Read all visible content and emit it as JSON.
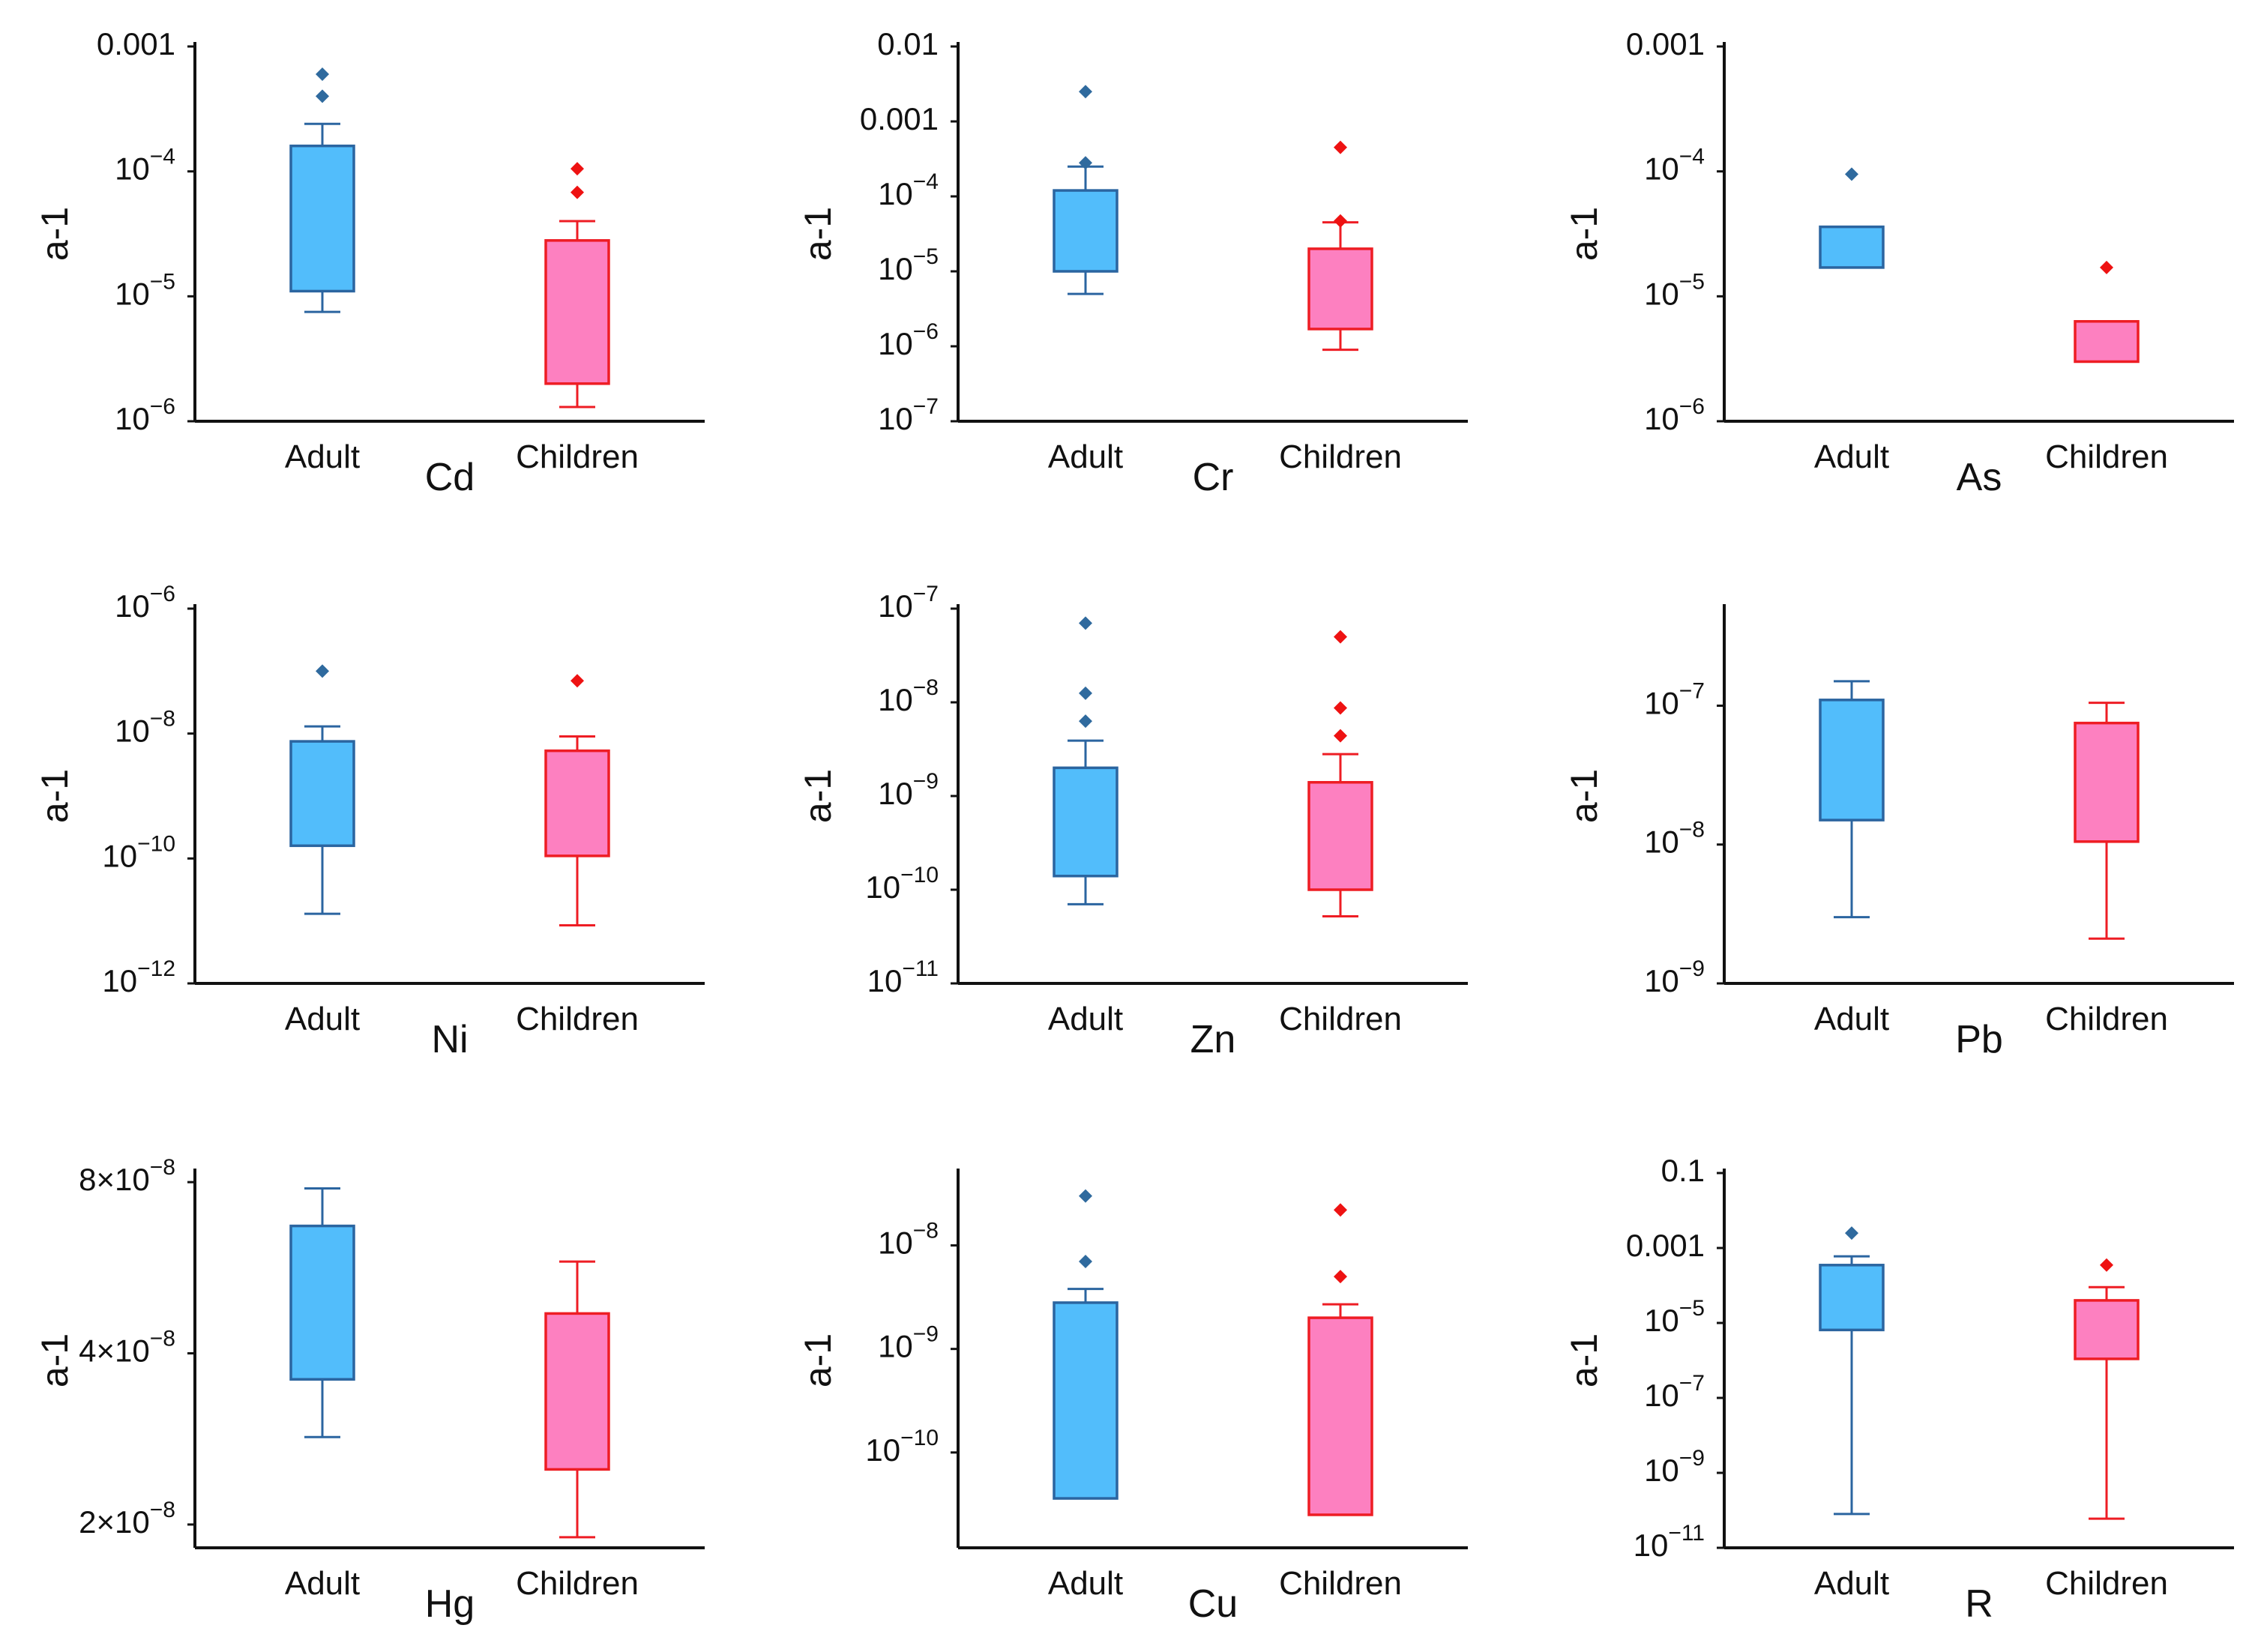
{
  "colors": {
    "adult_fill": "#52BDFB",
    "adult_stroke": "#2B65A0",
    "adult_outlier": "#2F6A9E",
    "children_fill": "#FD80C0",
    "children_stroke": "#EE1D24",
    "children_outlier": "#EE1212",
    "axis": "#111111"
  },
  "chart_data": [
    {
      "type": "box",
      "title": "Cd",
      "xlabel": "Cd",
      "ylabel": "a-1",
      "yscale": "log",
      "ylim": [
        1e-06,
        0.001
      ],
      "yticks": [
        {
          "value": 0.001,
          "label": "0.001"
        },
        {
          "value": 0.0001,
          "label": "10",
          "exp": "−4"
        },
        {
          "value": 1e-05,
          "label": "10",
          "exp": "−5"
        },
        {
          "value": 1e-06,
          "label": "10",
          "exp": "−6"
        }
      ],
      "categories": [
        "Adult",
        "Children"
      ],
      "series": [
        {
          "name": "Adult",
          "whisker_low": 7.5e-06,
          "q1": 1.1e-05,
          "q3": 0.00016,
          "whisker_high": 0.00024,
          "outliers": [
            0.0004,
            0.0006
          ]
        },
        {
          "name": "Children",
          "whisker_low": 1.3e-06,
          "q1": 2e-06,
          "q3": 2.8e-05,
          "whisker_high": 4e-05,
          "outliers": [
            6.8e-05,
            0.000105
          ]
        }
      ]
    },
    {
      "type": "box",
      "title": "Cr",
      "xlabel": "Cr",
      "ylabel": "a-1",
      "yscale": "log",
      "ylim": [
        1e-07,
        0.01
      ],
      "yticks": [
        {
          "value": 0.01,
          "label": "0.01"
        },
        {
          "value": 0.001,
          "label": "0.001"
        },
        {
          "value": 0.0001,
          "label": "10",
          "exp": "−4"
        },
        {
          "value": 1e-05,
          "label": "10",
          "exp": "−5"
        },
        {
          "value": 1e-06,
          "label": "10",
          "exp": "−6"
        },
        {
          "value": 1e-07,
          "label": "10",
          "exp": "−7"
        }
      ],
      "categories": [
        "Adult",
        "Children"
      ],
      "series": [
        {
          "name": "Adult",
          "whisker_low": 5e-06,
          "q1": 1e-05,
          "q3": 0.00012,
          "whisker_high": 0.00025,
          "outliers": [
            0.00028,
            0.0025
          ]
        },
        {
          "name": "Children",
          "whisker_low": 9e-07,
          "q1": 1.7e-06,
          "q3": 2e-05,
          "whisker_high": 4.5e-05,
          "outliers": [
            4.7e-05,
            0.00045
          ]
        }
      ]
    },
    {
      "type": "box",
      "title": "As",
      "xlabel": "As",
      "ylabel": "a-1",
      "yscale": "log",
      "ylim": [
        1e-06,
        0.001
      ],
      "yticks": [
        {
          "value": 0.001,
          "label": "0.001"
        },
        {
          "value": 0.0001,
          "label": "10",
          "exp": "−4"
        },
        {
          "value": 1e-05,
          "label": "10",
          "exp": "−5"
        },
        {
          "value": 1e-06,
          "label": "10",
          "exp": "−6"
        }
      ],
      "categories": [
        "Adult",
        "Children"
      ],
      "series": [
        {
          "name": "Adult",
          "whisker_low": 1.7e-05,
          "q1": 1.7e-05,
          "q3": 3.6e-05,
          "whisker_high": 3.6e-05,
          "outliers": [
            9.5e-05
          ]
        },
        {
          "name": "Children",
          "whisker_low": 3e-06,
          "q1": 3e-06,
          "q3": 6.3e-06,
          "whisker_high": 6.3e-06,
          "outliers": [
            1.7e-05
          ]
        }
      ]
    },
    {
      "type": "box",
      "title": "Ni",
      "xlabel": "Ni",
      "ylabel": "a-1",
      "yscale": "log",
      "ylim": [
        1e-12,
        1e-06
      ],
      "yticks": [
        {
          "value": 1e-06,
          "label": "10",
          "exp": "−6"
        },
        {
          "value": 1e-08,
          "label": "10",
          "exp": "−8"
        },
        {
          "value": 1e-10,
          "label": "10",
          "exp": "−10"
        },
        {
          "value": 1e-12,
          "label": "10",
          "exp": "−12"
        }
      ],
      "categories": [
        "Adult",
        "Children"
      ],
      "series": [
        {
          "name": "Adult",
          "whisker_low": 1.3e-11,
          "q1": 1.6e-10,
          "q3": 7.5e-09,
          "whisker_high": 1.3e-08,
          "outliers": [
            1e-07
          ]
        },
        {
          "name": "Children",
          "whisker_low": 8.5e-12,
          "q1": 1.1e-10,
          "q3": 5.3e-09,
          "whisker_high": 9e-09,
          "outliers": [
            7e-08
          ]
        }
      ]
    },
    {
      "type": "box",
      "title": "Zn",
      "xlabel": "Zn",
      "ylabel": "a-1",
      "yscale": "log",
      "ylim": [
        1e-11,
        1e-07
      ],
      "yticks": [
        {
          "value": 1e-07,
          "label": "10",
          "exp": "−7"
        },
        {
          "value": 1e-08,
          "label": "10",
          "exp": "−8"
        },
        {
          "value": 1e-09,
          "label": "10",
          "exp": "−9"
        },
        {
          "value": 1e-10,
          "label": "10",
          "exp": "−10"
        },
        {
          "value": 1e-11,
          "label": "10",
          "exp": "−11"
        }
      ],
      "categories": [
        "Adult",
        "Children"
      ],
      "series": [
        {
          "name": "Adult",
          "whisker_low": 7e-11,
          "q1": 1.4e-10,
          "q3": 2e-09,
          "whisker_high": 3.9e-09,
          "outliers": [
            6.3e-09,
            1.25e-08,
            7e-08
          ]
        },
        {
          "name": "Children",
          "whisker_low": 5.2e-11,
          "q1": 1e-10,
          "q3": 1.4e-09,
          "whisker_high": 2.8e-09,
          "outliers": [
            4.4e-09,
            8.7e-09,
            5e-08
          ]
        }
      ]
    },
    {
      "type": "box",
      "title": "Pb",
      "xlabel": "Pb",
      "ylabel": "a-1",
      "yscale": "log",
      "ylim": [
        1e-09,
        5e-07
      ],
      "yticks": [
        {
          "value": 1e-07,
          "label": "10",
          "exp": "−7"
        },
        {
          "value": 1e-08,
          "label": "10",
          "exp": "−8"
        },
        {
          "value": 1e-09,
          "label": "10",
          "exp": "−9"
        }
      ],
      "categories": [
        "Adult",
        "Children"
      ],
      "series": [
        {
          "name": "Adult",
          "whisker_low": 3e-09,
          "q1": 1.5e-08,
          "q3": 1.1e-07,
          "whisker_high": 1.5e-07,
          "outliers": []
        },
        {
          "name": "Children",
          "whisker_low": 2.1e-09,
          "q1": 1.05e-08,
          "q3": 7.5e-08,
          "whisker_high": 1.05e-07,
          "outliers": []
        }
      ]
    },
    {
      "type": "box",
      "title": "Hg",
      "xlabel": "Hg",
      "ylabel": "a-1",
      "yscale": "log",
      "ylim": [
        1.82e-08,
        8.3e-08
      ],
      "yticks": [
        {
          "value": 8e-08,
          "label": "8×10",
          "exp": "−8"
        },
        {
          "value": 4e-08,
          "label": "4×10",
          "exp": "−8"
        },
        {
          "value": 2e-08,
          "label": "2×10",
          "exp": "−8"
        }
      ],
      "categories": [
        "Adult",
        "Children"
      ],
      "series": [
        {
          "name": "Adult",
          "whisker_low": 2.85e-08,
          "q1": 3.6e-08,
          "q3": 6.7e-08,
          "whisker_high": 7.8e-08,
          "outliers": []
        },
        {
          "name": "Children",
          "whisker_low": 1.9e-08,
          "q1": 2.5e-08,
          "q3": 4.7e-08,
          "whisker_high": 5.8e-08,
          "outliers": []
        }
      ]
    },
    {
      "type": "box",
      "title": "Cu",
      "xlabel": "Cu",
      "ylabel": "a-1",
      "yscale": "log",
      "ylim": [
        1.2e-11,
        5e-08
      ],
      "yticks": [
        {
          "value": 1e-08,
          "label": "10",
          "exp": "−8"
        },
        {
          "value": 1e-09,
          "label": "10",
          "exp": "−9"
        },
        {
          "value": 1e-10,
          "label": "10",
          "exp": "−10"
        }
      ],
      "categories": [
        "Adult",
        "Children"
      ],
      "series": [
        {
          "name": "Adult",
          "whisker_low": 3.6e-11,
          "q1": 3.6e-11,
          "q3": 2.8e-09,
          "whisker_high": 3.8e-09,
          "outliers": [
            7e-09,
            3e-08
          ]
        },
        {
          "name": "Children",
          "whisker_low": 2.5e-11,
          "q1": 2.5e-11,
          "q3": 2e-09,
          "whisker_high": 2.7e-09,
          "outliers": [
            5e-09,
            2.2e-08
          ]
        }
      ]
    },
    {
      "type": "box",
      "title": "R",
      "xlabel": "R",
      "ylabel": "a-1",
      "yscale": "log",
      "ylim": [
        1e-11,
        0.1
      ],
      "yticks": [
        {
          "value": 0.1,
          "label": "0.1"
        },
        {
          "value": 0.001,
          "label": "0.001"
        },
        {
          "value": 1e-05,
          "label": "10",
          "exp": "−5"
        },
        {
          "value": 1e-07,
          "label": "10",
          "exp": "−7"
        },
        {
          "value": 1e-09,
          "label": "10",
          "exp": "−9"
        },
        {
          "value": 1e-11,
          "label": "10",
          "exp": "−11"
        }
      ],
      "categories": [
        "Adult",
        "Children"
      ],
      "series": [
        {
          "name": "Adult",
          "whisker_low": 8e-11,
          "q1": 6.5e-06,
          "q3": 0.00035,
          "whisker_high": 0.0006,
          "outliers": [
            0.0025
          ]
        },
        {
          "name": "Children",
          "whisker_low": 6e-11,
          "q1": 1.1e-06,
          "q3": 4e-05,
          "whisker_high": 9e-05,
          "outliers": [
            0.00035
          ]
        }
      ]
    }
  ]
}
